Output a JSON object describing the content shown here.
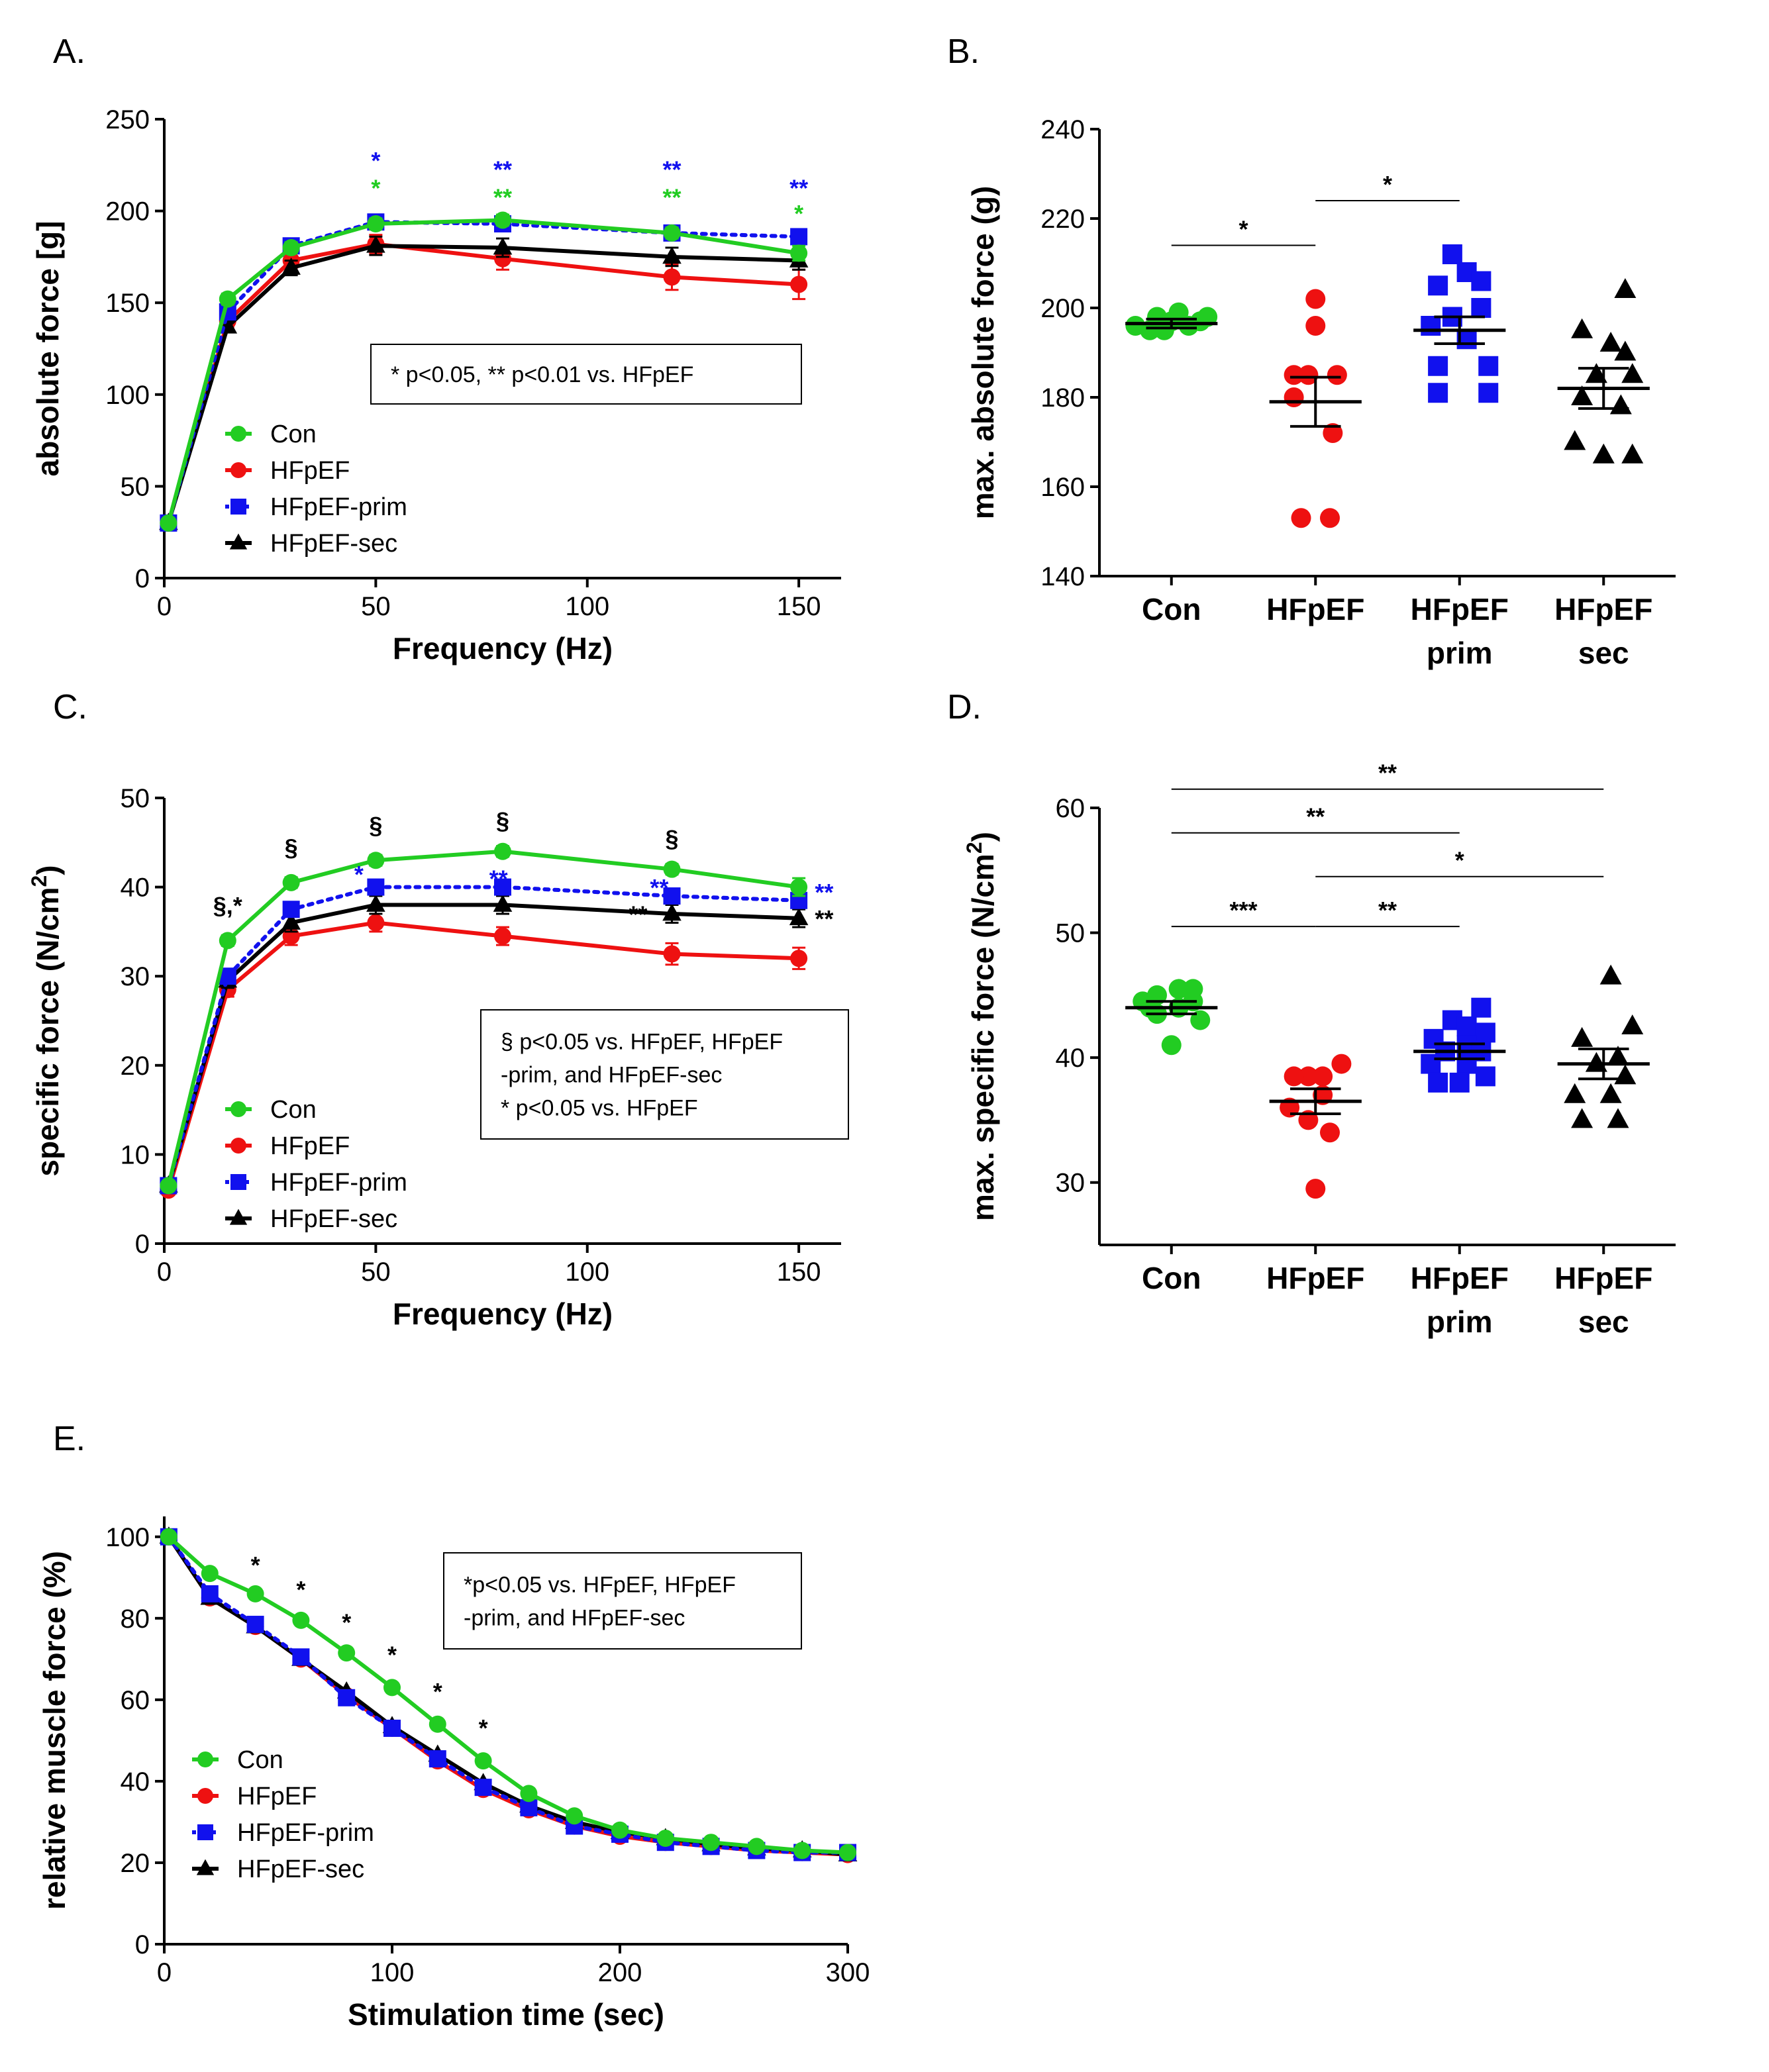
{
  "colors": {
    "Con": "#22cc22",
    "HFpEF": "#ee1111",
    "HFpEF-prim": "#1111ee",
    "HFpEF-sec": "#000000",
    "axis": "#000000"
  },
  "chart_data": [
    {
      "id": "A",
      "type": "line",
      "panel_label": "A.",
      "xlabel": "Frequency (Hz)",
      "ylabel": "absolute force [g]",
      "xlim": [
        0,
        160
      ],
      "ylim": [
        0,
        250
      ],
      "xticks": [
        0,
        50,
        100,
        150
      ],
      "yticks": [
        0,
        50,
        100,
        150,
        200,
        250
      ],
      "x": [
        1,
        15,
        30,
        50,
        80,
        120,
        150
      ],
      "series": [
        {
          "name": "Con",
          "marker": "circle",
          "dash": false,
          "values": [
            30,
            152,
            180,
            193,
            195,
            188,
            177
          ],
          "err": [
            0,
            3,
            3,
            3,
            3,
            3,
            4
          ]
        },
        {
          "name": "HFpEF",
          "marker": "circle",
          "dash": false,
          "values": [
            30,
            140,
            173,
            182,
            174,
            164,
            160
          ],
          "err": [
            0,
            3,
            4,
            5,
            6,
            7,
            8
          ]
        },
        {
          "name": "HFpEF-prim",
          "marker": "square",
          "dash": true,
          "values": [
            30,
            145,
            181,
            194,
            193,
            188,
            186
          ],
          "err": [
            0,
            3,
            3,
            4,
            4,
            4,
            4
          ]
        },
        {
          "name": "HFpEF-sec",
          "marker": "triangle",
          "dash": false,
          "values": [
            30,
            137,
            169,
            181,
            180,
            175,
            173
          ],
          "err": [
            0,
            3,
            4,
            5,
            5,
            5,
            5
          ]
        }
      ],
      "legend": [
        "Con",
        "HFpEF",
        "HFpEF-prim",
        "HFpEF-sec"
      ],
      "note_lines": [
        "* p<0.05, ** p<0.01 vs. HFpEF"
      ],
      "annotations": [
        {
          "x": 50,
          "y": 223,
          "text": "*",
          "color": "HFpEF-prim"
        },
        {
          "x": 50,
          "y": 208,
          "text": "*",
          "color": "Con"
        },
        {
          "x": 80,
          "y": 218,
          "text": "**",
          "color": "HFpEF-prim"
        },
        {
          "x": 80,
          "y": 203,
          "text": "**",
          "color": "Con"
        },
        {
          "x": 120,
          "y": 218,
          "text": "**",
          "color": "HFpEF-prim"
        },
        {
          "x": 120,
          "y": 203,
          "text": "**",
          "color": "Con"
        },
        {
          "x": 150,
          "y": 208,
          "text": "**",
          "color": "HFpEF-prim"
        },
        {
          "x": 150,
          "y": 194,
          "text": "*",
          "color": "Con"
        }
      ]
    },
    {
      "id": "B",
      "type": "scatter",
      "panel_label": "B.",
      "ylabel": "max. absolute force (g)",
      "ylim": [
        140,
        240
      ],
      "yticks": [
        140,
        160,
        180,
        200,
        220,
        240
      ],
      "categories": [
        "Con",
        "HFpEF",
        "HFpEF prim",
        "HFpEF sec"
      ],
      "groups": [
        {
          "name": "Con",
          "category": "Con",
          "marker": "circle",
          "mean": 196.5,
          "sem": 1,
          "points": [
            [
              -0.25,
              196
            ],
            [
              -0.15,
              195
            ],
            [
              -0.1,
              198
            ],
            [
              0,
              197
            ],
            [
              0.05,
              199
            ],
            [
              0.12,
              196
            ],
            [
              0.2,
              197
            ],
            [
              -0.05,
              195
            ],
            [
              0.25,
              198
            ]
          ]
        },
        {
          "name": "HFpEF",
          "category": "HFpEF",
          "marker": "circle",
          "mean": 179,
          "sem": 5.5,
          "points": [
            [
              0,
              202
            ],
            [
              0,
              196
            ],
            [
              -0.15,
              185
            ],
            [
              -0.05,
              185
            ],
            [
              0.15,
              185
            ],
            [
              -0.15,
              180
            ],
            [
              0.12,
              172
            ],
            [
              -0.1,
              153
            ],
            [
              0.1,
              153
            ]
          ]
        },
        {
          "name": "HFpEF-prim",
          "category": "HFpEF prim",
          "marker": "square",
          "mean": 195,
          "sem": 3,
          "points": [
            [
              -0.05,
              212
            ],
            [
              0.05,
              208
            ],
            [
              -0.15,
              205
            ],
            [
              0.15,
              206
            ],
            [
              -0.05,
              198
            ],
            [
              0.15,
              200
            ],
            [
              -0.2,
              196
            ],
            [
              0.05,
              193
            ],
            [
              -0.15,
              187
            ],
            [
              0.2,
              187
            ],
            [
              -0.15,
              181
            ],
            [
              0.2,
              181
            ]
          ]
        },
        {
          "name": "HFpEF-sec",
          "category": "HFpEF sec",
          "marker": "triangle",
          "mean": 182,
          "sem": 4.5,
          "points": [
            [
              0.15,
              204
            ],
            [
              -0.15,
              195
            ],
            [
              0.05,
              192
            ],
            [
              0.15,
              190
            ],
            [
              -0.05,
              185
            ],
            [
              0.2,
              185
            ],
            [
              -0.15,
              180
            ],
            [
              0.12,
              178
            ],
            [
              -0.2,
              170
            ],
            [
              0,
              167
            ],
            [
              0.2,
              167
            ]
          ]
        }
      ],
      "brackets": [
        {
          "from": 0,
          "to": 1,
          "y": 214,
          "label": "*"
        },
        {
          "from": 1,
          "to": 2,
          "y": 224,
          "label": "*"
        }
      ]
    },
    {
      "id": "C",
      "type": "line",
      "panel_label": "C.",
      "xlabel": "Frequency (Hz)",
      "ylabel": "specific force (N/cm²)",
      "xlim": [
        0,
        160
      ],
      "ylim": [
        0,
        50
      ],
      "xticks": [
        0,
        50,
        100,
        150
      ],
      "yticks": [
        0,
        10,
        20,
        30,
        40,
        50
      ],
      "x": [
        1,
        15,
        30,
        50,
        80,
        120,
        150
      ],
      "series": [
        {
          "name": "Con",
          "marker": "circle",
          "dash": false,
          "values": [
            6.5,
            34,
            40.5,
            43,
            44,
            42,
            40
          ],
          "err": [
            0,
            0.6,
            0.6,
            0.6,
            0.6,
            0.6,
            1
          ]
        },
        {
          "name": "HFpEF",
          "marker": "circle",
          "dash": false,
          "values": [
            6,
            28.5,
            34.5,
            36,
            34.5,
            32.5,
            32
          ],
          "err": [
            0,
            0.8,
            1,
            1,
            1,
            1.2,
            1.2
          ]
        },
        {
          "name": "HFpEF-prim",
          "marker": "square",
          "dash": true,
          "values": [
            6.5,
            30,
            37.5,
            40,
            40,
            39,
            38.5
          ],
          "err": [
            0,
            0.7,
            0.8,
            0.8,
            0.8,
            0.8,
            0.8
          ]
        },
        {
          "name": "HFpEF-sec",
          "marker": "triangle",
          "dash": false,
          "values": [
            6.5,
            29.5,
            36,
            38,
            38,
            37,
            36.5
          ],
          "err": [
            0,
            0.8,
            1,
            1,
            1,
            1,
            1
          ]
        }
      ],
      "legend": [
        "Con",
        "HFpEF",
        "HFpEF-prim",
        "HFpEF-sec"
      ],
      "note_lines": [
        "§ p<0.05 vs. HFpEF, HFpEF",
        "-prim, and HFpEF-sec",
        "* p<0.05 vs. HFpEF"
      ],
      "annotations": [
        {
          "x": 15,
          "y": 37,
          "text": "§,*",
          "color": "HFpEF-sec"
        },
        {
          "x": 30,
          "y": 43.5,
          "text": "§",
          "color": "HFpEF-sec"
        },
        {
          "x": 50,
          "y": 46,
          "text": "§",
          "color": "HFpEF-sec"
        },
        {
          "x": 80,
          "y": 46.5,
          "text": "§",
          "color": "HFpEF-sec"
        },
        {
          "x": 120,
          "y": 44.5,
          "text": "§",
          "color": "HFpEF-sec"
        },
        {
          "x": 46,
          "y": 40.5,
          "text": "*",
          "color": "HFpEF-prim"
        },
        {
          "x": 79,
          "y": 40,
          "text": "**",
          "color": "HFpEF-prim"
        },
        {
          "x": 117,
          "y": 39,
          "text": "**",
          "color": "HFpEF-prim"
        },
        {
          "x": 156,
          "y": 38.5,
          "text": "**",
          "color": "HFpEF-prim"
        },
        {
          "x": 112,
          "y": 36,
          "text": "**",
          "color": "HFpEF-sec"
        },
        {
          "x": 156,
          "y": 35.5,
          "text": "**",
          "color": "HFpEF-sec"
        }
      ]
    },
    {
      "id": "D",
      "type": "scatter",
      "panel_label": "D.",
      "ylabel": "max. specific force (N/cm²)",
      "ylim": [
        25,
        60
      ],
      "yticks": [
        30,
        40,
        50,
        60
      ],
      "categories": [
        "Con",
        "HFpEF",
        "HFpEF prim",
        "HFpEF sec"
      ],
      "groups": [
        {
          "name": "Con",
          "category": "Con",
          "marker": "circle",
          "mean": 44,
          "sem": 0.5,
          "points": [
            [
              -0.1,
              45
            ],
            [
              0.05,
              45.5
            ],
            [
              0.15,
              45.5
            ],
            [
              -0.2,
              44.5
            ],
            [
              0.15,
              44.5
            ],
            [
              -0.15,
              44
            ],
            [
              0.05,
              44
            ],
            [
              -0.1,
              43.5
            ],
            [
              0.2,
              43
            ],
            [
              0,
              41
            ]
          ]
        },
        {
          "name": "HFpEF",
          "category": "HFpEF",
          "marker": "circle",
          "mean": 36.5,
          "sem": 1,
          "points": [
            [
              -0.05,
              38.5
            ],
            [
              0.05,
              38.5
            ],
            [
              0.18,
              39.5
            ],
            [
              -0.15,
              38.5
            ],
            [
              0.05,
              37
            ],
            [
              -0.18,
              36
            ],
            [
              -0.05,
              35
            ],
            [
              0.1,
              34
            ],
            [
              0,
              29.5
            ]
          ]
        },
        {
          "name": "HFpEF-prim",
          "category": "HFpEF prim",
          "marker": "square",
          "mean": 40.5,
          "sem": 0.6,
          "points": [
            [
              0.15,
              44
            ],
            [
              -0.05,
              43
            ],
            [
              0.05,
              42.5
            ],
            [
              0.18,
              42
            ],
            [
              -0.18,
              41.5
            ],
            [
              0.05,
              41
            ],
            [
              -0.1,
              40.5
            ],
            [
              0.15,
              40.5
            ],
            [
              -0.2,
              39.5
            ],
            [
              0.05,
              39.5
            ],
            [
              -0.15,
              38
            ],
            [
              0,
              38
            ],
            [
              0.18,
              38.5
            ]
          ]
        },
        {
          "name": "HFpEF-sec",
          "category": "HFpEF sec",
          "marker": "triangle",
          "mean": 39.5,
          "sem": 1.2,
          "points": [
            [
              0.05,
              46.5
            ],
            [
              0.2,
              42.5
            ],
            [
              -0.15,
              41.5
            ],
            [
              0.1,
              40
            ],
            [
              -0.05,
              39.5
            ],
            [
              0.15,
              38.5
            ],
            [
              0.05,
              37
            ],
            [
              -0.2,
              37
            ],
            [
              -0.15,
              35
            ],
            [
              0.1,
              35
            ]
          ]
        }
      ],
      "brackets": [
        {
          "from": 0,
          "to": 1,
          "y": 50.5,
          "label": "***"
        },
        {
          "from": 1,
          "to": 2,
          "y": 50.5,
          "label": "**"
        },
        {
          "from": 1,
          "to": 3,
          "y": 54.5,
          "label": "*"
        },
        {
          "from": 0,
          "to": 2,
          "y": 58,
          "label": "**"
        },
        {
          "from": 0,
          "to": 3,
          "y": 61.5,
          "label": "**"
        }
      ]
    },
    {
      "id": "E",
      "type": "line",
      "panel_label": "E.",
      "xlabel": "Stimulation time (sec)",
      "ylabel": "relative muscle force (%)",
      "xlim": [
        0,
        300
      ],
      "ylim": [
        0,
        105
      ],
      "xticks": [
        0,
        100,
        200,
        300
      ],
      "yticks": [
        0,
        20,
        40,
        60,
        80,
        100
      ],
      "x": [
        2,
        20,
        40,
        60,
        80,
        100,
        120,
        140,
        160,
        180,
        200,
        220,
        240,
        260,
        280,
        300
      ],
      "series": [
        {
          "name": "Con",
          "marker": "circle",
          "dash": false,
          "values": [
            100,
            91,
            86,
            79.5,
            71.5,
            63,
            54,
            45,
            37,
            31.5,
            28,
            26,
            25,
            24,
            23,
            22.5
          ],
          "err": []
        },
        {
          "name": "HFpEF",
          "marker": "circle",
          "dash": false,
          "values": [
            100,
            85,
            78,
            70,
            61,
            53,
            45,
            38,
            33,
            29,
            26.5,
            25,
            24,
            23,
            22.5,
            22
          ],
          "err": []
        },
        {
          "name": "HFpEF-prim",
          "marker": "square",
          "dash": true,
          "values": [
            100,
            86,
            78.5,
            70.5,
            60.5,
            53,
            45.5,
            38.5,
            33.5,
            29,
            27,
            25,
            24,
            23,
            22.5,
            22.5
          ],
          "err": []
        },
        {
          "name": "HFpEF-sec",
          "marker": "triangle",
          "dash": false,
          "values": [
            100,
            85,
            78,
            70,
            62,
            53.5,
            46.5,
            39.5,
            34,
            30,
            27.5,
            26,
            24.5,
            23.5,
            23,
            22
          ],
          "err": []
        }
      ],
      "legend": [
        "Con",
        "HFpEF",
        "HFpEF-prim",
        "HFpEF-sec"
      ],
      "note_lines": [
        "*p<0.05 vs. HFpEF, HFpEF",
        "-prim, and HFpEF-sec"
      ],
      "annotations": [
        {
          "x": 40,
          "y": 91,
          "text": "*",
          "color": "HFpEF-sec"
        },
        {
          "x": 60,
          "y": 85,
          "text": "*",
          "color": "HFpEF-sec"
        },
        {
          "x": 80,
          "y": 77,
          "text": "*",
          "color": "HFpEF-sec"
        },
        {
          "x": 100,
          "y": 69,
          "text": "*",
          "color": "HFpEF-sec"
        },
        {
          "x": 120,
          "y": 60,
          "text": "*",
          "color": "HFpEF-sec"
        },
        {
          "x": 140,
          "y": 51,
          "text": "*",
          "color": "HFpEF-sec"
        }
      ]
    }
  ]
}
